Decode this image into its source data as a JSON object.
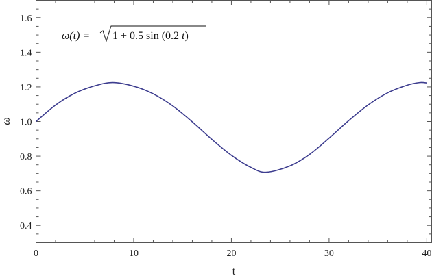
{
  "chart_data": {
    "type": "line",
    "xlabel": "t",
    "ylabel": "ω",
    "xlim": [
      0,
      40.5
    ],
    "ylim": [
      0.3,
      1.7
    ],
    "x_ticks": [
      0,
      10,
      20,
      30,
      40
    ],
    "y_ticks": [
      0.4,
      0.6,
      0.8,
      1.0,
      1.2,
      1.4,
      1.6
    ],
    "x_tick_labels": [
      "0",
      "10",
      "20",
      "30",
      "40"
    ],
    "y_tick_labels": [
      "0.4",
      "0.6",
      "0.8",
      "1.0",
      "1.2",
      "1.4",
      "1.6"
    ],
    "grid": false,
    "annotation": {
      "lhs": "ω(t) = ",
      "radicand_a": "1 + 0.5 sin (0.2 ",
      "radicand_var": "t",
      "radicand_b": ")"
    },
    "series": [
      {
        "color": "#3d3d8f",
        "x": [
          0,
          2,
          4,
          6,
          7.85,
          10,
          12,
          14,
          16,
          18,
          20,
          22,
          23.56,
          26,
          28,
          30,
          32,
          34,
          36,
          38,
          39.27,
          40
        ],
        "y": [
          1.0,
          1.095,
          1.164,
          1.206,
          1.225,
          1.204,
          1.16,
          1.09,
          0.998,
          0.897,
          0.805,
          0.735,
          0.707,
          0.744,
          0.81,
          0.904,
          1.005,
          1.096,
          1.166,
          1.21,
          1.225,
          1.223
        ]
      }
    ]
  }
}
